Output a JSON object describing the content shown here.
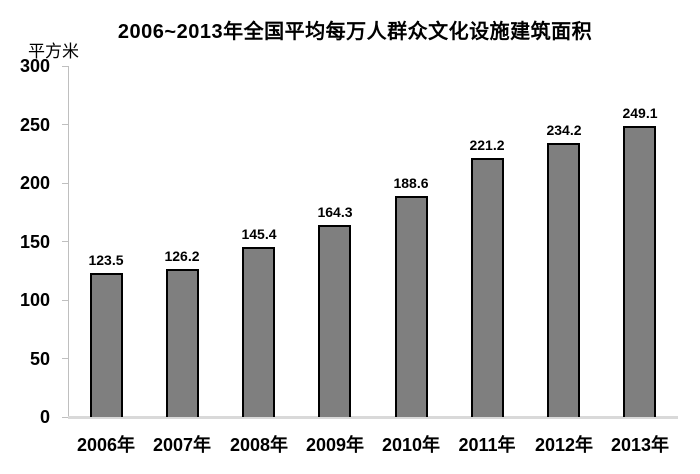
{
  "chart": {
    "title": "2006~2013年全国平均每万人群众文化设施建筑面积",
    "y_unit_label": "平方米"
  },
  "chart_data": {
    "type": "bar",
    "title": "2006~2013年全国平均每万人群众文化设施建筑面积",
    "categories": [
      "2006年",
      "2007年",
      "2008年",
      "2009年",
      "2010年",
      "2011年",
      "2012年",
      "2013年"
    ],
    "values": [
      123.5,
      126.2,
      145.4,
      164.3,
      188.6,
      221.2,
      234.2,
      249.1
    ],
    "data_labels": [
      "123.5",
      "126.2",
      "145.4",
      "164.3",
      "188.6",
      "221.2",
      "234.2",
      "249.1"
    ],
    "xlabel": "",
    "ylabel": "平方米",
    "ylim": [
      0,
      300
    ],
    "yticks": [
      0,
      50,
      100,
      150,
      200,
      250,
      300
    ],
    "grid": false,
    "legend": "none",
    "colors": {
      "bar_fill": "#7f7f7f",
      "bar_border": "#000000",
      "axis_line": "#bfbfbf",
      "baseline": "#d9d9d9",
      "text": "#000000"
    }
  }
}
